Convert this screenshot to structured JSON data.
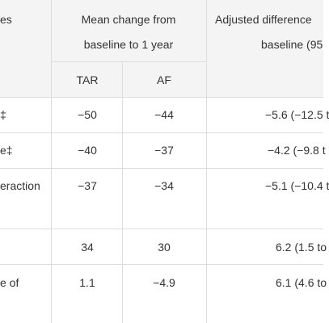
{
  "header": {
    "col0_tail": "es",
    "col1_line1": "Mean change from",
    "col1_line2": "baseline to 1 year",
    "col2_line1": "Adjusted difference",
    "col2_line2": "baseline (95",
    "sub_tar": "TAR",
    "sub_af": "AF"
  },
  "rows": [
    {
      "label": "‡",
      "tar": "−50",
      "af": "−44",
      "diff": "−5.6 (−12.5 t"
    },
    {
      "label": "e‡",
      "tar": "−40",
      "af": "−37",
      "diff": "−4.2 (−9.8 t"
    },
    {
      "label": "eraction",
      "tar": "−37",
      "af": "−34",
      "diff": "−5.1 (−10.4 t"
    },
    {
      "label": "",
      "tar": "34",
      "af": "30",
      "diff": "6.2 (1.5 to"
    },
    {
      "label": "e of",
      "tar": "1.1",
      "af": "−4.9",
      "diff": "6.1 (4.6 to"
    }
  ]
}
